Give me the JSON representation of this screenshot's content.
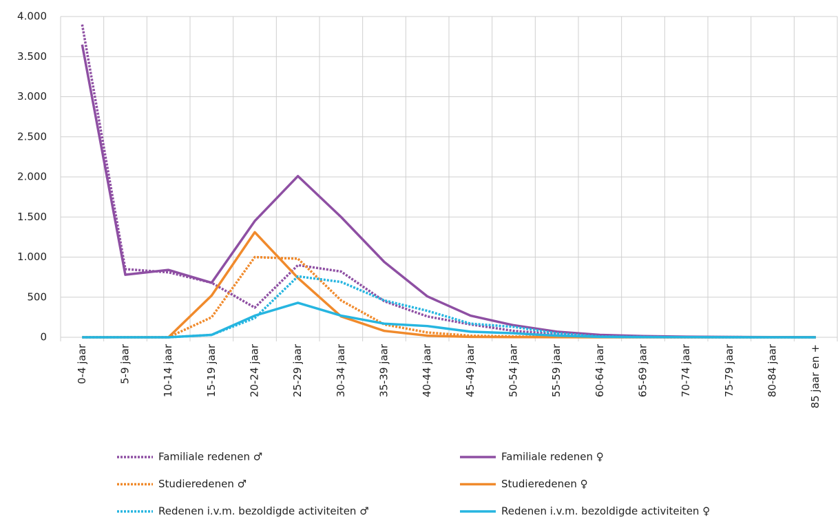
{
  "chart_data": {
    "type": "line",
    "categories": [
      "0-4 jaar",
      "5-9 jaar",
      "10-14 jaar",
      "15-19 jaar",
      "20-24 jaar",
      "25-29 jaar",
      "30-34 jaar",
      "35-39 jaar",
      "40-44 jaar",
      "45-49 jaar",
      "50-54 jaar",
      "55-59 jaar",
      "60-64 jaar",
      "65-69 jaar",
      "70-74 jaar",
      "75-79 jaar",
      "80-84 jaar",
      "85 jaar en +"
    ],
    "series": [
      {
        "name": "Familiale redenen ♂",
        "color": "#8e4fa3",
        "dash": true,
        "values": [
          3900,
          850,
          810,
          680,
          370,
          900,
          820,
          450,
          260,
          160,
          80,
          40,
          20,
          10,
          5,
          3,
          2,
          1
        ]
      },
      {
        "name": "Familiale redenen ♀",
        "color": "#8e4fa3",
        "dash": false,
        "values": [
          3650,
          780,
          840,
          680,
          1450,
          2010,
          1500,
          940,
          510,
          270,
          150,
          70,
          30,
          15,
          8,
          4,
          2,
          1
        ]
      },
      {
        "name": "Studieredenen ♂",
        "color": "#f08a2c",
        "dash": true,
        "values": [
          0,
          0,
          0,
          250,
          1000,
          980,
          460,
          160,
          60,
          20,
          10,
          5,
          2,
          1,
          0,
          0,
          0,
          0
        ]
      },
      {
        "name": "Studieredenen ♀",
        "color": "#f08a2c",
        "dash": false,
        "values": [
          0,
          0,
          0,
          520,
          1310,
          740,
          260,
          80,
          20,
          5,
          2,
          1,
          0,
          0,
          0,
          0,
          0,
          0
        ]
      },
      {
        "name": "Redenen i.v.m. bezoldigde activiteiten ♂",
        "color": "#26b5e0",
        "dash": true,
        "values": [
          0,
          0,
          0,
          30,
          240,
          760,
          690,
          460,
          330,
          170,
          130,
          50,
          10,
          5,
          2,
          1,
          0,
          0
        ]
      },
      {
        "name": "Redenen i.v.m. bezoldigde activiteiten ♀",
        "color": "#26b5e0",
        "dash": false,
        "values": [
          0,
          0,
          0,
          30,
          270,
          430,
          270,
          170,
          140,
          70,
          50,
          20,
          5,
          2,
          1,
          0,
          0,
          0
        ]
      }
    ],
    "ylim": [
      0,
      4000
    ],
    "yticks": [
      0,
      500,
      {
        "value": 1000,
        "label": "1.000"
      },
      {
        "value": 1500,
        "label": "1.500"
      },
      {
        "value": 2000,
        "label": "2.000"
      },
      {
        "value": 2500,
        "label": "2.500"
      },
      {
        "value": 3000,
        "label": "3.000"
      },
      {
        "value": 3500,
        "label": "3.500"
      },
      {
        "value": 4000,
        "label": "4.000"
      }
    ],
    "grid": true
  }
}
